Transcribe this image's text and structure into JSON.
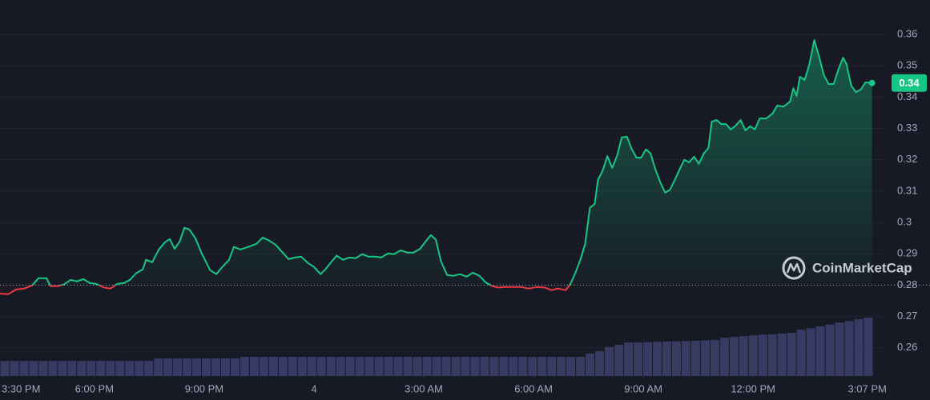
{
  "chart_data": {
    "type": "line",
    "x": [
      15.42,
      15.64,
      15.86,
      16.08,
      16.3,
      16.47,
      16.69,
      16.8,
      17.0,
      17.17,
      17.35,
      17.52,
      17.7,
      17.87,
      18.05,
      18.27,
      18.44,
      18.62,
      18.81,
      18.97,
      19.14,
      19.32,
      19.41,
      19.58,
      19.76,
      19.93,
      20.06,
      20.19,
      20.33,
      20.46,
      20.59,
      20.76,
      20.94,
      21.16,
      21.33,
      21.51,
      21.68,
      21.81,
      21.99,
      22.21,
      22.43,
      22.6,
      22.78,
      22.95,
      23.13,
      23.3,
      23.48,
      23.65,
      23.83,
      24.0,
      24.18,
      24.31,
      24.49,
      24.62,
      24.79,
      24.97,
      25.14,
      25.32,
      25.49,
      25.67,
      25.84,
      26.02,
      26.19,
      26.37,
      26.55,
      26.72,
      26.9,
      27.07,
      27.2,
      27.33,
      27.47,
      27.64,
      27.82,
      27.99,
      28.17,
      28.34,
      28.52,
      28.69,
      28.87,
      29.04,
      29.22,
      29.44,
      29.66,
      29.87,
      30.09,
      30.31,
      30.49,
      30.66,
      30.88,
      31.01,
      31.14,
      31.28,
      31.41,
      31.54,
      31.67,
      31.76,
      31.89,
      32.02,
      32.15,
      32.28,
      32.41,
      32.55,
      32.68,
      32.81,
      32.94,
      33.07,
      33.2,
      33.33,
      33.47,
      33.6,
      33.73,
      33.86,
      33.99,
      34.12,
      34.25,
      34.39,
      34.52,
      34.65,
      34.78,
      34.87,
      35.0,
      35.13,
      35.26,
      35.39,
      35.52,
      35.66,
      35.79,
      35.92,
      36.05,
      36.18,
      36.36,
      36.53,
      36.66,
      36.84,
      37.01,
      37.1,
      37.19,
      37.28,
      37.41,
      37.54,
      37.67,
      37.8,
      37.93,
      38.06,
      38.2,
      38.33,
      38.46,
      38.55,
      38.68,
      38.81,
      38.94,
      39.07,
      39.25
    ],
    "values": [
      0.2773,
      0.2771,
      0.2786,
      0.2789,
      0.2799,
      0.2822,
      0.2822,
      0.2797,
      0.2797,
      0.2802,
      0.2817,
      0.2812,
      0.2819,
      0.2807,
      0.2804,
      0.2792,
      0.2789,
      0.2804,
      0.2807,
      0.2817,
      0.2838,
      0.285,
      0.2881,
      0.2873,
      0.2914,
      0.2937,
      0.2947,
      0.2916,
      0.2939,
      0.2983,
      0.2978,
      0.295,
      0.2899,
      0.2848,
      0.2835,
      0.286,
      0.2881,
      0.2922,
      0.2914,
      0.2922,
      0.2932,
      0.2952,
      0.2942,
      0.2929,
      0.2906,
      0.2883,
      0.2888,
      0.2891,
      0.2871,
      0.2858,
      0.2835,
      0.285,
      0.2876,
      0.2894,
      0.2881,
      0.2888,
      0.2886,
      0.2899,
      0.2891,
      0.2891,
      0.2888,
      0.2901,
      0.2899,
      0.2911,
      0.2904,
      0.2904,
      0.2916,
      0.2942,
      0.296,
      0.2945,
      0.2876,
      0.2832,
      0.283,
      0.2835,
      0.2827,
      0.284,
      0.283,
      0.2809,
      0.2797,
      0.2792,
      0.2794,
      0.2794,
      0.2794,
      0.2789,
      0.2794,
      0.2792,
      0.2784,
      0.2789,
      0.2784,
      0.2804,
      0.2838,
      0.2881,
      0.2932,
      0.3047,
      0.3059,
      0.3136,
      0.3166,
      0.3212,
      0.3174,
      0.3212,
      0.3271,
      0.3274,
      0.3235,
      0.3207,
      0.3207,
      0.3233,
      0.322,
      0.3169,
      0.3126,
      0.3095,
      0.3105,
      0.3136,
      0.3169,
      0.32,
      0.3192,
      0.321,
      0.3187,
      0.322,
      0.3238,
      0.3322,
      0.3327,
      0.3314,
      0.3314,
      0.3297,
      0.3309,
      0.3327,
      0.3294,
      0.3307,
      0.3297,
      0.3332,
      0.3332,
      0.3348,
      0.3373,
      0.337,
      0.3386,
      0.3429,
      0.3404,
      0.3465,
      0.3455,
      0.3506,
      0.3582,
      0.3531,
      0.3472,
      0.3442,
      0.3442,
      0.3488,
      0.3526,
      0.3506,
      0.3437,
      0.3416,
      0.3424,
      0.3447,
      0.3445
    ],
    "up_color": "#16c784",
    "down_color": "#ea3943",
    "baseline": 0.28,
    "price_label": "0.34",
    "xlim": [
      15.42,
      39.28
    ],
    "xticks": [
      {
        "value": 15.5,
        "label": "3:30 PM"
      },
      {
        "value": 18,
        "label": "6:00 PM"
      },
      {
        "value": 21,
        "label": "9:00 PM"
      },
      {
        "value": 24,
        "label": "4"
      },
      {
        "value": 27,
        "label": "3:00 AM"
      },
      {
        "value": 30,
        "label": "6:00 AM"
      },
      {
        "value": 33,
        "label": "9:00 AM"
      },
      {
        "value": 36,
        "label": "12:00 PM"
      },
      {
        "value": 39.12,
        "label": "3:07 PM"
      }
    ],
    "ylim": [
      0.251,
      0.371
    ],
    "yticks": [
      0.26,
      0.27,
      0.28,
      0.29,
      0.3,
      0.31,
      0.32,
      0.33,
      0.34,
      0.35,
      0.36
    ],
    "grid": true,
    "volume": {
      "color": "#3b3f6b",
      "axis": "y2",
      "values": [
        4.0,
        4.0,
        4.0,
        4.0,
        4.0,
        4.0,
        4.0,
        4.0,
        4.0,
        4.0,
        4.0,
        4.0,
        4.0,
        4.0,
        4.0,
        4.0,
        4.7,
        4.7,
        4.7,
        4.7,
        4.7,
        4.7,
        4.7,
        4.7,
        4.7,
        5.1,
        5.1,
        5.1,
        5.1,
        5.1,
        5.1,
        5.1,
        5.1,
        5.1,
        5.1,
        5.1,
        5.1,
        5.1,
        5.1,
        5.1,
        5.1,
        5.1,
        5.1,
        5.1,
        5.1,
        5.1,
        5.1,
        5.1,
        5.1,
        5.1,
        5.1,
        5.1,
        5.1,
        5.1,
        5.1,
        5.1,
        5.1,
        5.1,
        5.1,
        5.1,
        5.1,
        6.0,
        6.6,
        7.7,
        8.3,
        8.9,
        8.9,
        9.0,
        9.1,
        9.2,
        9.2,
        9.3,
        9.4,
        9.5,
        9.6,
        10.2,
        10.4,
        10.6,
        10.8,
        11.0,
        11.1,
        11.3,
        11.5,
        12.3,
        12.7,
        13.2,
        13.7,
        14.2,
        14.6,
        15.1,
        15.5
      ]
    },
    "y2lim": [
      0,
      100
    ],
    "watermark": "CoinMarketCap"
  }
}
